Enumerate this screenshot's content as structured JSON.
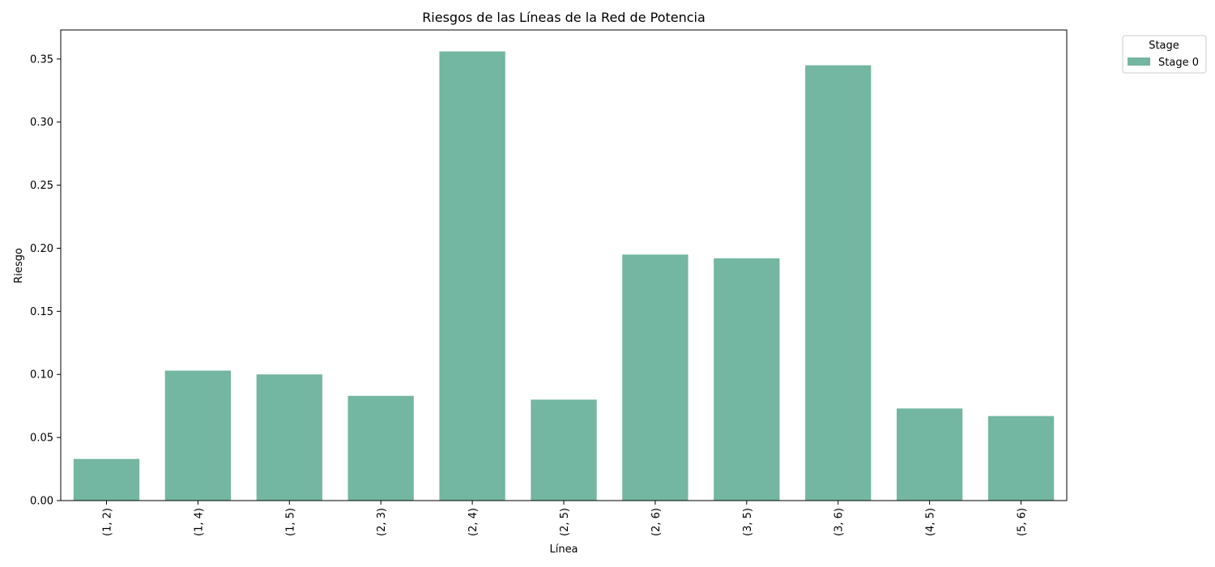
{
  "chart_data": {
    "type": "bar",
    "title": "Riesgos de las Líneas de la Red de Potencia",
    "xlabel": "Línea",
    "ylabel": "Riesgo",
    "categories": [
      "(1, 2)",
      "(1, 4)",
      "(1, 5)",
      "(2, 3)",
      "(2, 4)",
      "(2, 5)",
      "(2, 6)",
      "(3, 5)",
      "(3, 6)",
      "(4, 5)",
      "(5, 6)"
    ],
    "series": [
      {
        "name": "Stage 0",
        "color": "#73b6a1",
        "values": [
          0.033,
          0.103,
          0.1,
          0.083,
          0.356,
          0.08,
          0.195,
          0.192,
          0.345,
          0.073,
          0.067
        ]
      }
    ],
    "ylim": [
      0,
      0.373
    ],
    "yticks": [
      0.0,
      0.05,
      0.1,
      0.15,
      0.2,
      0.25,
      0.3,
      0.35
    ],
    "yticklabels": [
      "0.00",
      "0.05",
      "0.10",
      "0.15",
      "0.20",
      "0.25",
      "0.30",
      "0.35"
    ],
    "grid": false,
    "legend": {
      "title": "Stage",
      "placement": "outside-top-right"
    }
  }
}
